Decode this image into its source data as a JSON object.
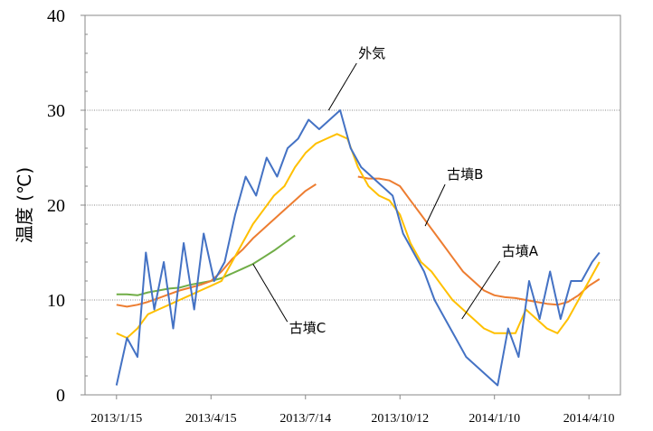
{
  "chart_data": {
    "type": "line",
    "title": "",
    "xlabel": "",
    "ylabel": "温度 (℃)",
    "ylim": [
      0,
      40
    ],
    "y_ticks": [
      0,
      10,
      20,
      30,
      40
    ],
    "y_tick_labels": [
      "0",
      "10",
      "20",
      "30",
      "40"
    ],
    "x_ticks": [
      "2013-01-15",
      "2013-04-15",
      "2013-07-14",
      "2013-10-12",
      "2014-01-10",
      "2014-04-10"
    ],
    "x_tick_labels": [
      "2013/1/15",
      "2013/4/15",
      "2013/7/14",
      "2013/10/12",
      "2014/1/10",
      "2014/4/10"
    ],
    "xlim": [
      "2012-12-16",
      "2014-05-10"
    ],
    "grid": "horizontal dotted",
    "legend": "none (series labelled by callouts)",
    "series": [
      {
        "name": "外気",
        "color": "#4472c4",
        "x": [
          "2013-01-15",
          "2013-01-25",
          "2013-02-04",
          "2013-02-12",
          "2013-02-20",
          "2013-03-01",
          "2013-03-10",
          "2013-03-20",
          "2013-03-30",
          "2013-04-08",
          "2013-04-18",
          "2013-04-28",
          "2013-05-08",
          "2013-05-18",
          "2013-05-28",
          "2013-06-07",
          "2013-06-17",
          "2013-06-27",
          "2013-07-07",
          "2013-07-17",
          "2013-07-27",
          "2013-08-06",
          "2013-08-16",
          "2013-08-26",
          "2013-09-05",
          "2013-09-15",
          "2013-09-25",
          "2013-10-05",
          "2013-10-15",
          "2013-10-25",
          "2013-11-04",
          "2013-11-14",
          "2013-11-24",
          "2013-12-04",
          "2013-12-14",
          "2013-12-24",
          "2014-01-03",
          "2014-01-13",
          "2014-01-23",
          "2014-02-02",
          "2014-02-12",
          "2014-02-22",
          "2014-03-04",
          "2014-03-14",
          "2014-03-24",
          "2014-04-03",
          "2014-04-13",
          "2014-04-20"
        ],
        "values": [
          1,
          6,
          4,
          15,
          9,
          14,
          7,
          16,
          9,
          17,
          12,
          14,
          19,
          23,
          21,
          25,
          23,
          26,
          27,
          29,
          28,
          29,
          30,
          26,
          24,
          23,
          22,
          21,
          17,
          15,
          13,
          10,
          8,
          6,
          4,
          3,
          2,
          1,
          7,
          4,
          12,
          8,
          13,
          8,
          12,
          12,
          14,
          15
        ]
      },
      {
        "name": "古墳A",
        "color": "#ffc000",
        "x": [
          "2013-01-15",
          "2013-01-25",
          "2013-02-04",
          "2013-02-14",
          "2013-02-24",
          "2013-03-06",
          "2013-03-16",
          "2013-03-26",
          "2013-04-05",
          "2013-04-15",
          "2013-04-25",
          "2013-05-05",
          "2013-05-15",
          "2013-05-25",
          "2013-06-04",
          "2013-06-14",
          "2013-06-24",
          "2013-07-04",
          "2013-07-14",
          "2013-07-24",
          "2013-08-03",
          "2013-08-13",
          "2013-08-23",
          "2013-09-02",
          "2013-09-12",
          "2013-09-22",
          "2013-10-02",
          "2013-10-12",
          "2013-10-22",
          "2013-11-01",
          "2013-11-11",
          "2013-11-21",
          "2013-12-01",
          "2013-12-11",
          "2013-12-21",
          "2013-12-31",
          "2014-01-10",
          "2014-01-20",
          "2014-01-30",
          "2014-02-09",
          "2014-02-19",
          "2014-03-01",
          "2014-03-11",
          "2014-03-21",
          "2014-03-31",
          "2014-04-10",
          "2014-04-20"
        ],
        "values": [
          6.5,
          6,
          7,
          8.5,
          9,
          9.5,
          10,
          10.5,
          11,
          11.5,
          12,
          14,
          16,
          18,
          19.5,
          21,
          22,
          24,
          25.5,
          26.5,
          27,
          27.5,
          27,
          24,
          22,
          21,
          20.5,
          19,
          16,
          14,
          13,
          11.5,
          10,
          9,
          8,
          7,
          6.5,
          6.5,
          6.5,
          9,
          8,
          7,
          6.5,
          8,
          10,
          12,
          14
        ]
      },
      {
        "name": "古墳B",
        "color": "#ed7d31",
        "x": [
          "2013-01-15",
          "2013-01-25",
          "2013-02-04",
          "2013-02-14",
          "2013-02-24",
          "2013-03-06",
          "2013-03-16",
          "2013-03-26",
          "2013-04-05",
          "2013-04-15",
          "2013-04-25",
          "2013-05-05",
          "2013-05-15",
          "2013-05-25",
          "2013-06-04",
          "2013-06-14",
          "2013-06-24",
          "2013-07-04",
          "2013-07-14",
          "2013-07-24",
          "2013-08-03",
          "2013-08-13",
          "2013-08-23",
          "2013-09-02",
          "2013-09-12",
          "2013-09-22",
          "2013-10-02",
          "2013-10-12",
          "2013-10-22",
          "2013-11-01",
          "2013-11-11",
          "2013-11-21",
          "2013-12-01",
          "2013-12-11",
          "2013-12-21",
          "2013-12-31",
          "2014-01-10",
          "2014-01-20",
          "2014-01-30",
          "2014-02-09",
          "2014-02-19",
          "2014-03-01",
          "2014-03-11",
          "2014-03-21",
          "2014-03-31",
          "2014-04-10",
          "2014-04-20"
        ],
        "values": [
          9.5,
          9.3,
          9.5,
          9.8,
          10.2,
          10.6,
          11,
          11.3,
          11.6,
          12,
          13,
          14.3,
          15.3,
          16.5,
          17.5,
          18.5,
          19.5,
          20.5,
          21.5,
          22.2,
          null,
          null,
          null,
          23,
          22.8,
          22.8,
          22.6,
          22,
          20.5,
          19,
          17.5,
          16,
          14.5,
          13,
          12,
          11,
          10.5,
          10.3,
          10.2,
          10,
          9.8,
          9.6,
          9.5,
          9.8,
          10.5,
          11.5,
          12.2
        ]
      },
      {
        "name": "古墳C",
        "color": "#70ad47",
        "x": [
          "2013-01-15",
          "2013-01-25",
          "2013-02-04",
          "2013-02-14",
          "2013-02-24",
          "2013-03-06",
          "2013-03-16",
          "2013-03-26",
          "2013-04-05",
          "2013-04-15",
          "2013-04-25",
          "2013-05-05",
          "2013-05-15",
          "2013-05-25",
          "2013-06-04",
          "2013-06-14",
          "2013-06-24",
          "2013-07-04",
          "2013-07-14"
        ],
        "values": [
          10.6,
          10.6,
          10.5,
          10.8,
          11,
          11.2,
          11.3,
          11.6,
          11.8,
          12,
          12.3,
          12.8,
          13.3,
          13.8,
          14.5,
          15.2,
          16,
          16.8,
          null
        ]
      }
    ],
    "annotations": [
      {
        "text": "外気",
        "series": "外気",
        "anchor_date": "2013-08-05",
        "anchor_value": 30
      },
      {
        "text": "古墳B",
        "series": "古墳B",
        "anchor_date": "2013-11-05",
        "anchor_value": 17.8
      },
      {
        "text": "古墳A",
        "series": "古墳A",
        "anchor_date": "2013-12-10",
        "anchor_value": 8
      },
      {
        "text": "古墳C",
        "series": "古墳C",
        "anchor_date": "2013-05-25",
        "anchor_value": 13.8
      }
    ]
  }
}
